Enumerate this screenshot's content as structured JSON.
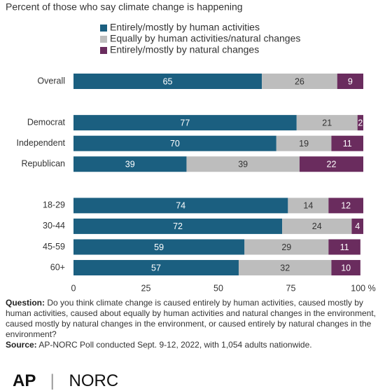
{
  "chart_data": {
    "type": "stacked-bar-horizontal",
    "subtitle": "Percent of those who say climate change is happening",
    "categories": [
      "Overall",
      null,
      "Democrat",
      "Independent",
      "Republican",
      null,
      "18-29",
      "30-44",
      "45-59",
      "60+"
    ],
    "series": [
      {
        "name": "Entirely/mostly by human activities",
        "color": "#1b5f80",
        "values": [
          65,
          null,
          77,
          70,
          39,
          null,
          74,
          72,
          59,
          57
        ]
      },
      {
        "name": "Equally by human activities/natural changes",
        "color": "#bdbdbd",
        "values": [
          26,
          null,
          21,
          19,
          39,
          null,
          14,
          24,
          29,
          32
        ]
      },
      {
        "name": "Entirely/mostly by natural changes",
        "color": "#6a2c5e",
        "values": [
          9,
          null,
          2,
          11,
          22,
          null,
          12,
          4,
          11,
          10
        ]
      }
    ],
    "xlim": [
      0,
      100
    ],
    "xticks": [
      0,
      25,
      50,
      75,
      {
        "value": 100,
        "label": "100 %"
      }
    ],
    "grid": false,
    "legend": "top"
  },
  "footer": {
    "question_label": "Question:",
    "question": "Do you think climate change is caused entirely by human activities, caused mostly by human activities, caused about equally by human activities and natural changes in the environment, caused mostly by natural changes in the environment, or caused entirely by natural changes in the environment?",
    "source_label": "Source:",
    "source": "AP-NORC Poll conducted Sept. 9-12, 2022, with 1,054 adults nationwide.",
    "logo_left": "AP",
    "logo_right": "NORC"
  }
}
